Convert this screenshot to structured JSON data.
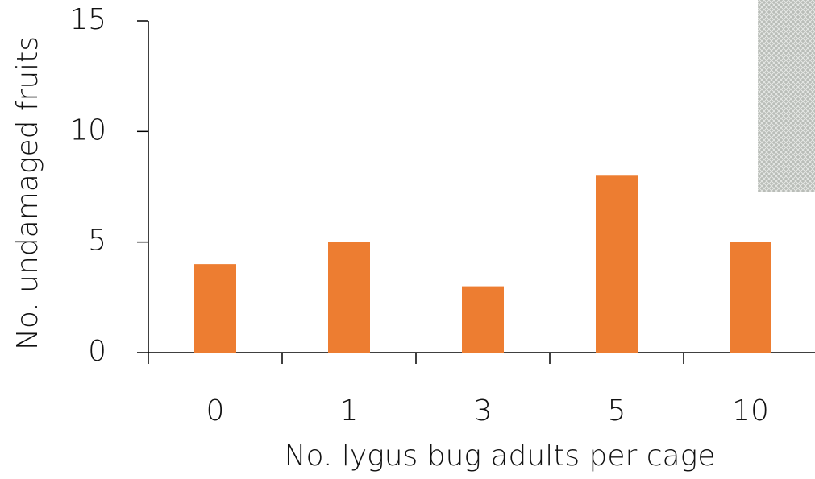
{
  "chart_data": {
    "type": "bar",
    "xlabel": "No. lygus bug adults per cage",
    "ylabel": "No. undamaged fruits",
    "categories": [
      "0",
      "1",
      "3",
      "5",
      "10"
    ],
    "values": [
      4,
      5,
      3,
      8,
      5
    ],
    "color": "#ed7d31",
    "ylim": [
      0,
      15
    ],
    "yticks": [
      0,
      5,
      10,
      15
    ],
    "grid": false
  }
}
